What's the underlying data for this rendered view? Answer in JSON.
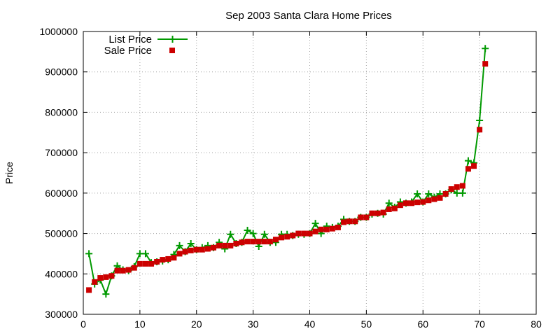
{
  "chart_data": {
    "type": "line",
    "title": "Sep 2003 Santa Clara Home Prices",
    "xlabel": "",
    "ylabel": "Price",
    "xlim": [
      0,
      80
    ],
    "ylim": [
      300000,
      1000000
    ],
    "x_ticks": [
      "0",
      "10",
      "20",
      "30",
      "40",
      "50",
      "60",
      "70",
      "80"
    ],
    "y_ticks": [
      "300000",
      "400000",
      "500000",
      "600000",
      "700000",
      "800000",
      "900000",
      "1000000"
    ],
    "grid": true,
    "legend_position": "top-left",
    "series": [
      {
        "name": "List Price",
        "style": "line-plus",
        "color": "#009900",
        "x": [
          1,
          2,
          3,
          4,
          5,
          6,
          7,
          8,
          9,
          10,
          11,
          12,
          13,
          14,
          15,
          16,
          17,
          18,
          19,
          20,
          21,
          22,
          23,
          24,
          25,
          26,
          27,
          28,
          29,
          30,
          31,
          32,
          33,
          34,
          35,
          36,
          37,
          38,
          39,
          40,
          41,
          42,
          43,
          44,
          45,
          46,
          47,
          48,
          49,
          50,
          51,
          52,
          53,
          54,
          55,
          56,
          57,
          58,
          59,
          60,
          61,
          62,
          63,
          64,
          65,
          66,
          67,
          68,
          69,
          70,
          71
        ],
        "values": [
          450000,
          375000,
          385000,
          350000,
          395000,
          420000,
          410000,
          408000,
          418000,
          450000,
          450000,
          428000,
          430000,
          432000,
          435000,
          448000,
          470000,
          455000,
          475000,
          460000,
          465000,
          470000,
          465000,
          478000,
          462000,
          498000,
          475000,
          478000,
          508000,
          500000,
          468000,
          498000,
          478000,
          478000,
          498000,
          498000,
          495000,
          498000,
          498000,
          500000,
          525000,
          500000,
          518000,
          515000,
          518000,
          535000,
          530000,
          530000,
          540000,
          540000,
          548000,
          550000,
          548000,
          575000,
          565000,
          578000,
          575000,
          578000,
          598000,
          578000,
          598000,
          590000,
          598000,
          598000,
          608000,
          600000,
          600000,
          680000,
          675000,
          780000,
          958000
        ]
      },
      {
        "name": "Sale Price",
        "style": "square-points",
        "color": "#cc0000",
        "x": [
          1,
          2,
          3,
          4,
          5,
          6,
          7,
          8,
          9,
          10,
          11,
          12,
          13,
          14,
          15,
          16,
          17,
          18,
          19,
          20,
          21,
          22,
          23,
          24,
          25,
          26,
          27,
          28,
          29,
          30,
          31,
          32,
          33,
          34,
          35,
          36,
          37,
          38,
          39,
          40,
          41,
          42,
          43,
          44,
          45,
          46,
          47,
          48,
          49,
          50,
          51,
          52,
          53,
          54,
          55,
          56,
          57,
          58,
          59,
          60,
          61,
          62,
          63,
          64,
          65,
          66,
          67,
          68,
          69,
          70,
          71
        ],
        "values": [
          360000,
          380000,
          390000,
          392000,
          395000,
          408000,
          408000,
          410000,
          415000,
          425000,
          425000,
          425000,
          430000,
          435000,
          437000,
          440000,
          450000,
          455000,
          458000,
          460000,
          460000,
          462000,
          465000,
          470000,
          470000,
          470000,
          475000,
          478000,
          480000,
          480000,
          480000,
          480000,
          480000,
          485000,
          490000,
          492000,
          495000,
          500000,
          500000,
          500000,
          505000,
          510000,
          510000,
          512000,
          515000,
          528000,
          530000,
          530000,
          540000,
          540000,
          550000,
          550000,
          552000,
          560000,
          562000,
          570000,
          575000,
          575000,
          577000,
          578000,
          582000,
          585000,
          588000,
          598000,
          610000,
          615000,
          618000,
          660000,
          667000,
          757000,
          920000
        ]
      }
    ]
  }
}
